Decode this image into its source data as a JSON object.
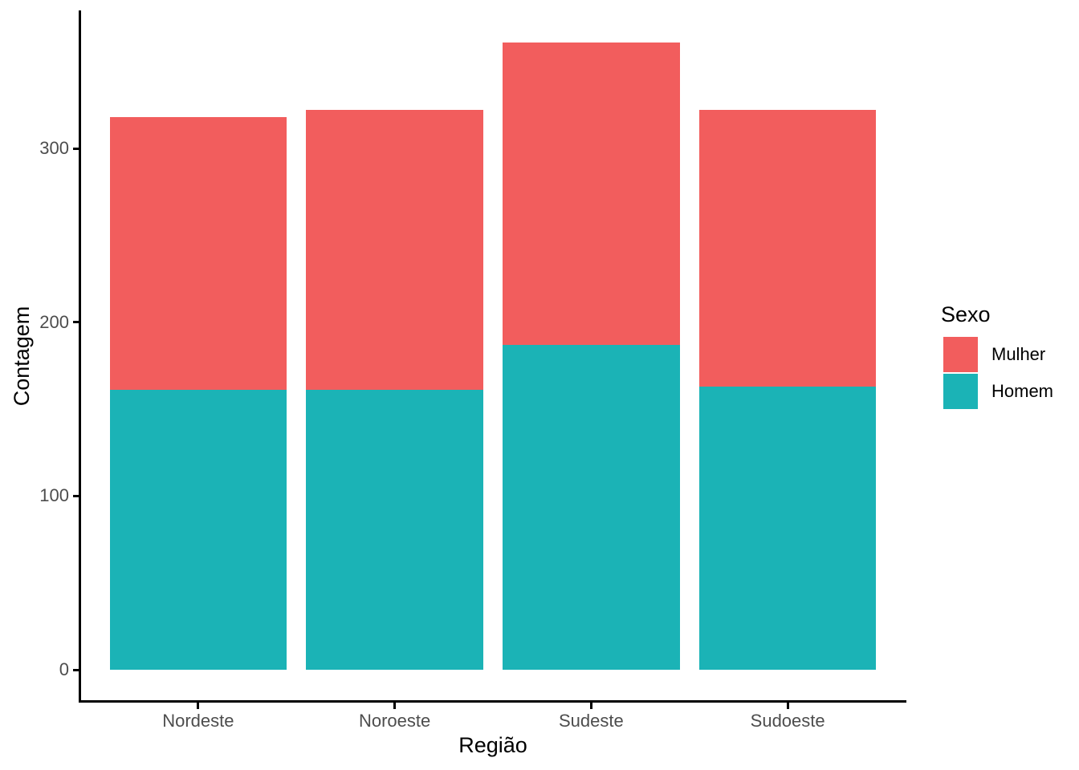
{
  "chart_data": {
    "type": "bar",
    "stacked": true,
    "title": "",
    "xlabel": "Região",
    "ylabel": "Contagem",
    "categories": [
      "Nordeste",
      "Noroeste",
      "Sudeste",
      "Sudoeste"
    ],
    "series": [
      {
        "name": "Mulher",
        "color": "#F25D5D",
        "values": [
          157,
          161,
          174,
          159
        ]
      },
      {
        "name": "Homem",
        "color": "#1BB3B6",
        "values": [
          161,
          161,
          187,
          163
        ]
      }
    ],
    "totals": [
      318,
      322,
      361,
      322
    ],
    "yticks": [
      0,
      100,
      200,
      300
    ],
    "ylim": [
      -18,
      379
    ],
    "bar_width_fraction": 0.9,
    "grid": false,
    "legend_title": "Sexo",
    "legend_position": "right",
    "colors": {
      "background": "#FFFFFF",
      "axis_line": "#000000",
      "axis_text": "#4D4D4D",
      "axis_title_text": "#000000",
      "legend_text": "#000000"
    }
  }
}
